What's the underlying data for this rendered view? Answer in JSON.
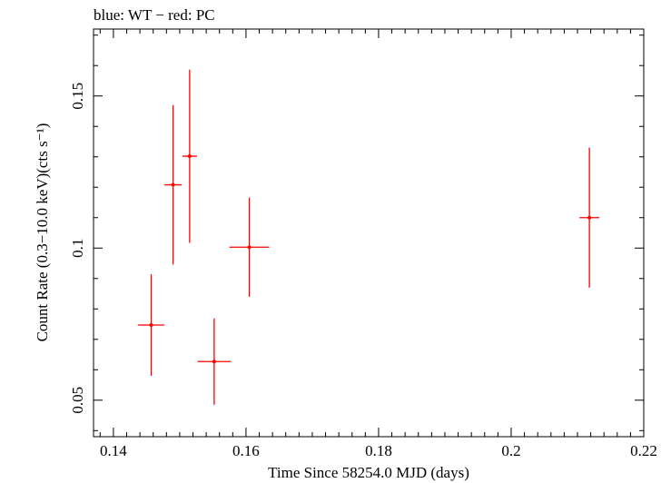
{
  "chart_data": {
    "type": "scatter",
    "title": "blue: WT − red: PC",
    "xlabel": "Time Since 58254.0 MJD (days)",
    "ylabel": "Count Rate (0.3−10.0 keV)(cts s⁻¹)",
    "xlim": [
      0.137,
      0.22
    ],
    "ylim": [
      0.038,
      0.172
    ],
    "x_ticks": [
      {
        "value": 0.14,
        "label": "0.14"
      },
      {
        "value": 0.16,
        "label": "0.16"
      },
      {
        "value": 0.18,
        "label": "0.18"
      },
      {
        "value": 0.2,
        "label": "0.2"
      },
      {
        "value": 0.22,
        "label": "0.22"
      }
    ],
    "y_ticks": [
      {
        "value": 0.05,
        "label": "0.05"
      },
      {
        "value": 0.1,
        "label": "0.1"
      },
      {
        "value": 0.15,
        "label": "0.15"
      }
    ],
    "grid": false,
    "series": [
      {
        "color": "#ff0000",
        "points": [
          {
            "x": 0.1457,
            "xerr": 0.002,
            "y": 0.0747,
            "yerr_low": 0.0167,
            "yerr_high": 0.0167
          },
          {
            "x": 0.149,
            "xerr": 0.0013,
            "y": 0.1208,
            "yerr_low": 0.0262,
            "yerr_high": 0.0262
          },
          {
            "x": 0.1515,
            "xerr": 0.0011,
            "y": 0.1302,
            "yerr_low": 0.0285,
            "yerr_high": 0.0285
          },
          {
            "x": 0.1552,
            "xerr": 0.0025,
            "y": 0.0627,
            "yerr_low": 0.0142,
            "yerr_high": 0.0142
          },
          {
            "x": 0.1605,
            "xerr": 0.003,
            "y": 0.1003,
            "yerr_low": 0.0163,
            "yerr_high": 0.0163
          },
          {
            "x": 0.2118,
            "xerr": 0.0015,
            "y": 0.11,
            "yerr_low": 0.023,
            "yerr_high": 0.023
          }
        ]
      }
    ]
  }
}
